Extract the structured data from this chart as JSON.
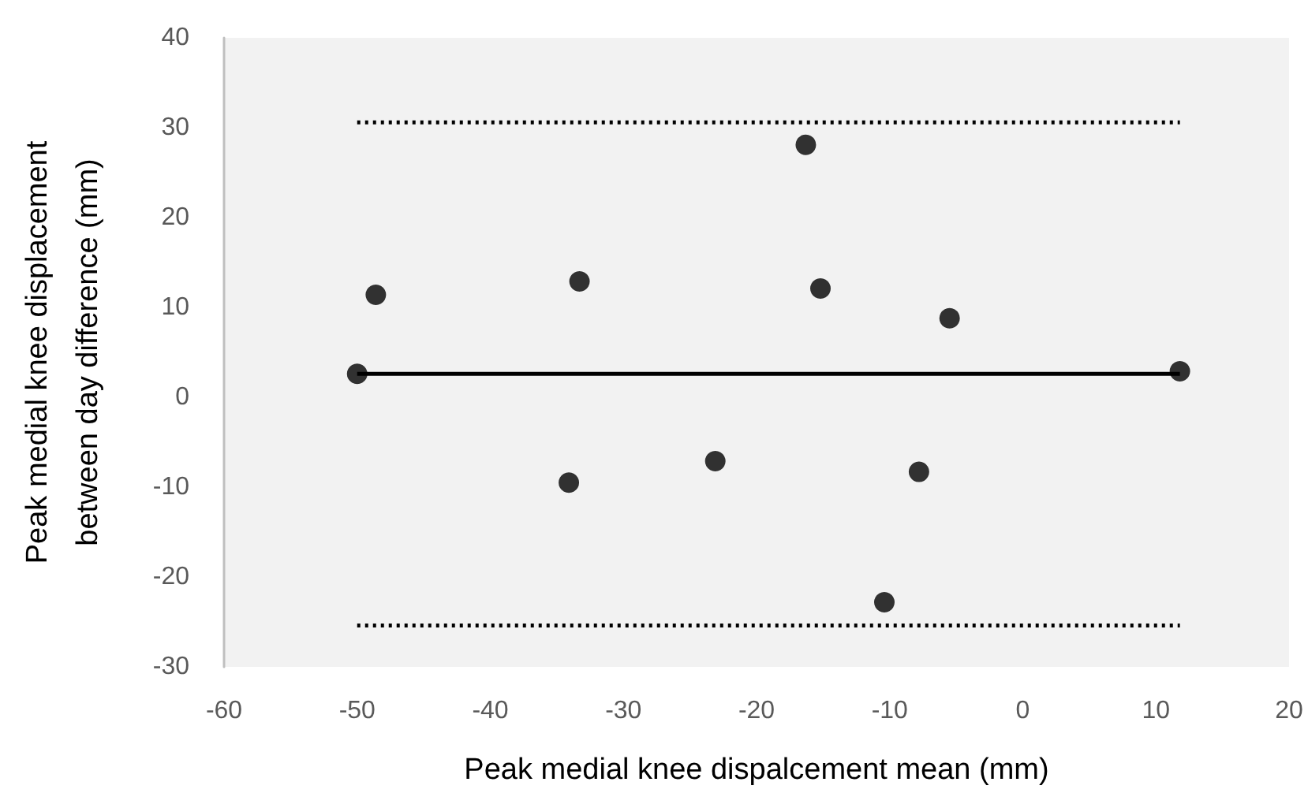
{
  "chart_data": {
    "type": "scatter",
    "xlabel": "Peak medial knee dispalcement mean (mm)",
    "ylabel": "Peak medial knee displacement between day difference (mm)",
    "x": [
      -50.0,
      -48.6,
      -33.3,
      -34.1,
      -23.1,
      -16.3,
      -15.2,
      -5.5,
      -7.8,
      -10.4,
      11.8
    ],
    "series": [
      {
        "color": "#000000",
        "values": [
          2.6,
          11.4,
          12.9,
          -9.5,
          -7.1,
          28.1,
          12.1,
          8.8,
          -8.3,
          -22.8,
          2.9
        ]
      }
    ],
    "xlim": [
      -60,
      20
    ],
    "xticks": [
      -60,
      -50,
      -40,
      -30,
      -20,
      -10,
      0,
      10,
      20
    ],
    "ylim": [
      -30,
      40
    ],
    "yticks": [
      -30,
      -20,
      -10,
      0,
      10,
      20,
      30,
      40
    ],
    "ref_lines": [
      {
        "axis": "y",
        "value": 30.6,
        "color": "#000000",
        "line_style": "dotted"
      },
      {
        "axis": "y",
        "value": 2.6,
        "color": "#000000",
        "line_style": "solid"
      },
      {
        "axis": "y",
        "value": -25.4,
        "color": "#000000",
        "line_style": "dotted"
      }
    ],
    "grid": false,
    "marker": "circle"
  }
}
